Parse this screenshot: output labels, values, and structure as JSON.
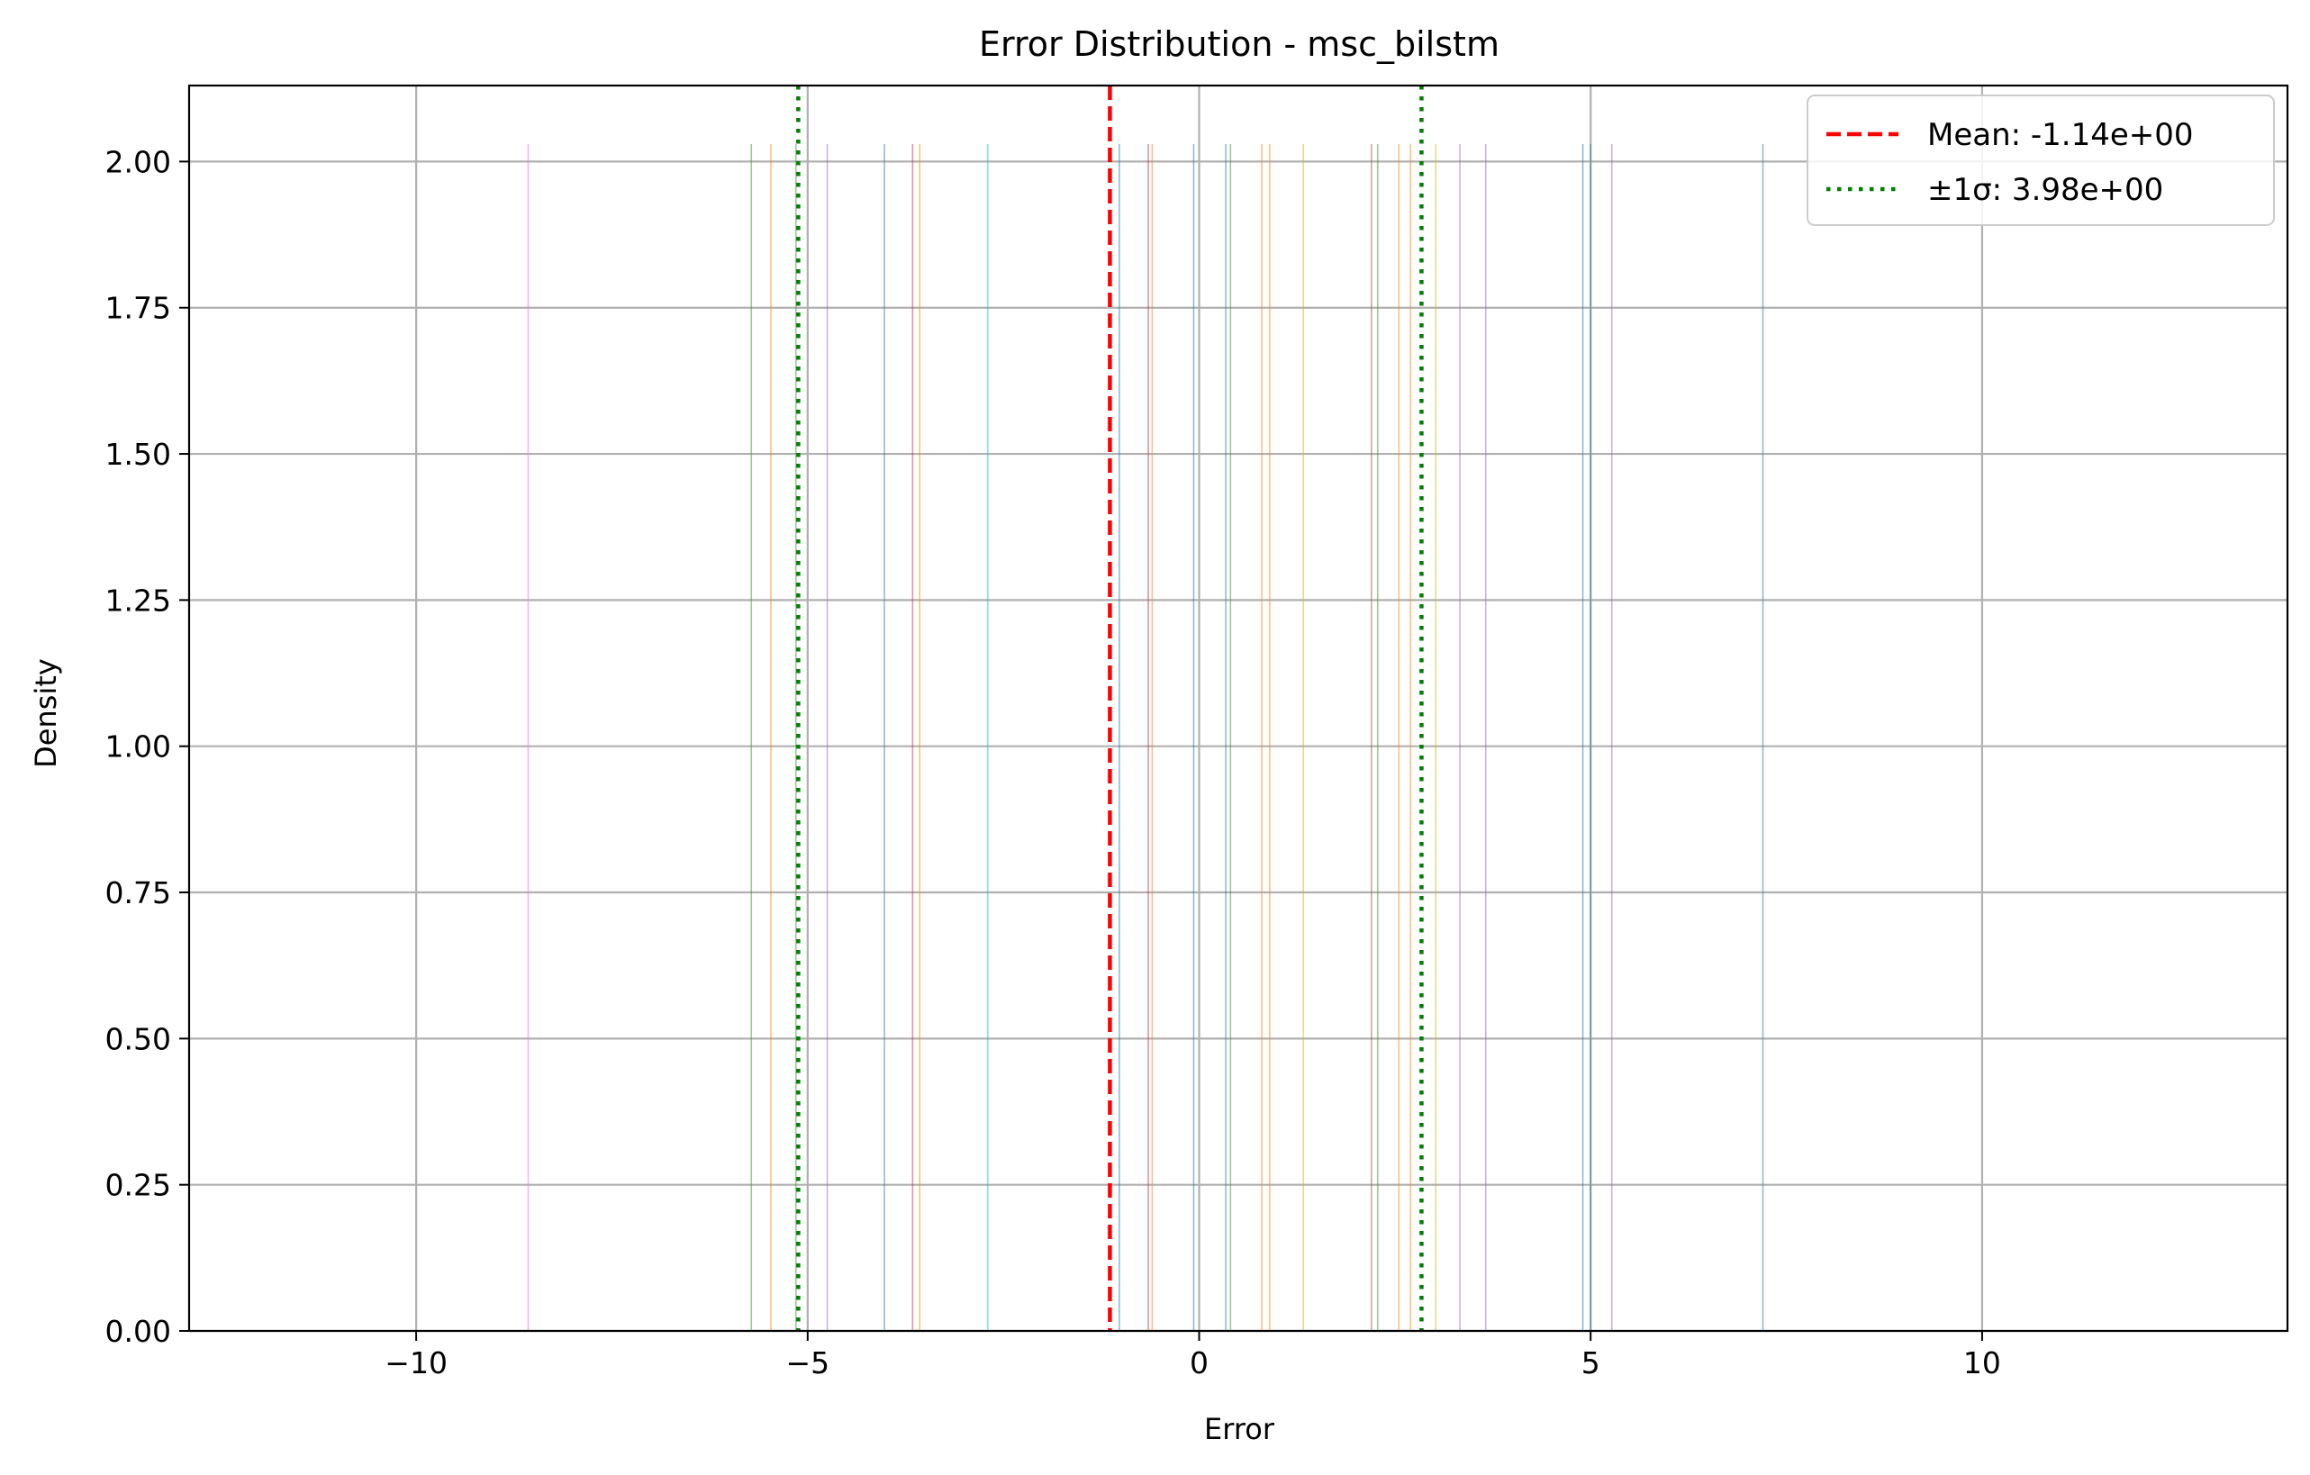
{
  "chart_data": {
    "type": "histogram",
    "title": "Error Distribution - msc_bilstm",
    "xlabel": "Error",
    "ylabel": "Density",
    "xlim": [
      -12.9,
      13.9
    ],
    "ylim": [
      0,
      2.13
    ],
    "xticks": [
      -10,
      -5,
      0,
      5,
      10
    ],
    "xtick_labels": [
      "−10",
      "−5",
      "0",
      "5",
      "10"
    ],
    "yticks": [
      0.0,
      0.25,
      0.5,
      0.75,
      1.0,
      1.25,
      1.5,
      1.75,
      2.0
    ],
    "ytick_labels": [
      "0.00",
      "0.25",
      "0.50",
      "0.75",
      "1.00",
      "1.25",
      "1.50",
      "1.75",
      "2.00"
    ],
    "grid": true,
    "bar_density": 2.03,
    "bars": [
      {
        "x": -8.57,
        "color": "#e377c2"
      },
      {
        "x": -5.72,
        "color": "#2ca02c"
      },
      {
        "x": -5.47,
        "color": "#ff7f0e"
      },
      {
        "x": -5.15,
        "color": "#2ca02c"
      },
      {
        "x": -4.75,
        "color": "#9467bd"
      },
      {
        "x": -4.02,
        "color": "#1f77b4"
      },
      {
        "x": -3.66,
        "color": "#d62728"
      },
      {
        "x": -3.57,
        "color": "#ff7f0e"
      },
      {
        "x": -2.7,
        "color": "#17becf"
      },
      {
        "x": -1.02,
        "color": "#1f77b4"
      },
      {
        "x": -0.65,
        "color": "#d62728"
      },
      {
        "x": -0.6,
        "color": "#ff7f0e"
      },
      {
        "x": -0.07,
        "color": "#1f77b4"
      },
      {
        "x": 0.34,
        "color": "#1f77b4"
      },
      {
        "x": 0.4,
        "color": "#2ca02c"
      },
      {
        "x": 0.8,
        "color": "#ff7f0e"
      },
      {
        "x": 0.9,
        "color": "#ff7f0e"
      },
      {
        "x": 1.33,
        "color": "#bcbd22"
      },
      {
        "x": 2.2,
        "color": "#8c564b"
      },
      {
        "x": 2.28,
        "color": "#2ca02c"
      },
      {
        "x": 2.55,
        "color": "#ff7f0e"
      },
      {
        "x": 2.7,
        "color": "#ff7f0e"
      },
      {
        "x": 3.02,
        "color": "#bcbd22"
      },
      {
        "x": 3.33,
        "color": "#9467bd"
      },
      {
        "x": 3.66,
        "color": "#9467bd"
      },
      {
        "x": 4.9,
        "color": "#1f77b4"
      },
      {
        "x": 5.0,
        "color": "#1f77b4"
      },
      {
        "x": 5.27,
        "color": "#9467bd"
      },
      {
        "x": 7.2,
        "color": "#1f77b4"
      }
    ],
    "mean_line": {
      "x": -1.14,
      "color": "#ff0000",
      "style": "dashed"
    },
    "sigma_lines": {
      "x": [
        -5.12,
        2.84
      ],
      "color": "#008000",
      "style": "dotted"
    },
    "legend": {
      "placement": "top-right",
      "entries": [
        {
          "label": "Mean: -1.14e+00",
          "color": "#ff0000",
          "style": "dashed"
        },
        {
          "label": "±1σ: 3.98e+00",
          "color": "#008000",
          "style": "dotted"
        }
      ]
    }
  }
}
